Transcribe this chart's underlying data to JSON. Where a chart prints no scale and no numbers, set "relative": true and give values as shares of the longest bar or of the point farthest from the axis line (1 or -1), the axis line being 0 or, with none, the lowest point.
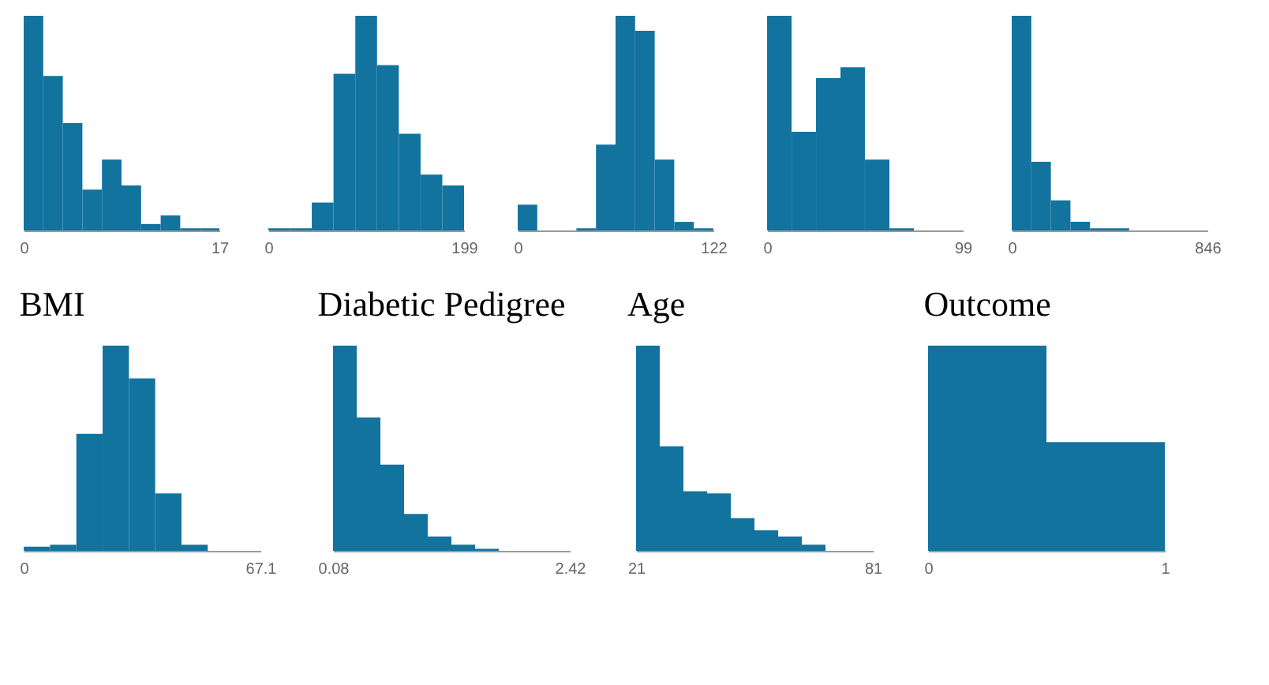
{
  "chart_data": [
    {
      "type": "bar",
      "relative": true,
      "color": "#12739f",
      "xlim": [
        0,
        17
      ],
      "xticks": [
        0,
        17
      ],
      "tick_labels": "x",
      "x": [
        0.85,
        2.55,
        4.25,
        5.95,
        7.65,
        9.35,
        11.05,
        12.75,
        14.45,
        16.15
      ],
      "values": [
        1,
        0.72,
        0.5,
        0.19,
        0.33,
        0.21,
        0.03,
        0.07,
        0.01,
        0.01
      ]
    },
    {
      "type": "bar",
      "relative": true,
      "color": "#12739f",
      "xlim": [
        0,
        199
      ],
      "xticks": [
        0,
        199
      ],
      "tick_labels": "x",
      "x": [
        11.05,
        33.15,
        55.25,
        77.35,
        99.5,
        121.65,
        143.75,
        165.85,
        187.95
      ],
      "values": [
        0.01,
        0.01,
        0.13,
        0.73,
        1,
        0.77,
        0.45,
        0.26,
        0.21
      ]
    },
    {
      "type": "bar",
      "relative": true,
      "color": "#12739f",
      "xlim": [
        0,
        122
      ],
      "xticks": [
        0,
        122
      ],
      "tick_labels": "x",
      "x": [
        6.1,
        18.3,
        30.5,
        42.7,
        54.9,
        67.1,
        79.3,
        91.5,
        103.7,
        115.9
      ],
      "values": [
        0.12,
        0,
        0,
        0.01,
        0.4,
        1,
        0.93,
        0.33,
        0.04,
        0.01
      ]
    },
    {
      "type": "bar",
      "relative": true,
      "color": "#12739f",
      "xlim": [
        0,
        99
      ],
      "xticks": [
        0,
        99
      ],
      "tick_labels": "x",
      "x": [
        6.2,
        18.6,
        30.95,
        43.3,
        55.7,
        68.1,
        80.45,
        92.8
      ],
      "values": [
        1,
        0.46,
        0.71,
        0.76,
        0.33,
        0.01,
        0,
        0
      ]
    },
    {
      "type": "bar",
      "relative": true,
      "color": "#12739f",
      "xlim": [
        0,
        846
      ],
      "xticks": [
        0,
        846
      ],
      "tick_labels": "x",
      "x": [
        42.3,
        126.9,
        211.5,
        296.1,
        380.7,
        465.3,
        549.9,
        634.5,
        719.1,
        803.7
      ],
      "values": [
        1,
        0.32,
        0.14,
        0.04,
        0.01,
        0.01,
        0,
        0,
        0,
        0
      ]
    },
    {
      "type": "bar",
      "title": "BMI",
      "relative": true,
      "color": "#12739f",
      "xlim": [
        0,
        67.1
      ],
      "xticks": [
        0,
        67.1
      ],
      "tick_labels": "x",
      "x": [
        3.75,
        11.2,
        18.65,
        26.1,
        33.55,
        41,
        48.45,
        55.9,
        63.35
      ],
      "values": [
        0.02,
        0.03,
        0.57,
        1,
        0.84,
        0.28,
        0.03,
        0,
        0
      ]
    },
    {
      "type": "bar",
      "title": "Diabetic Pedigree",
      "relative": true,
      "color": "#12739f",
      "xlim": [
        0.08,
        2.42
      ],
      "xticks": [
        0.08,
        2.42
      ],
      "tick_labels": "x",
      "x": [
        0.197,
        0.431,
        0.665,
        0.899,
        1.133,
        1.367,
        1.601,
        1.835,
        2.069,
        2.303
      ],
      "values": [
        1,
        0.65,
        0.42,
        0.18,
        0.07,
        0.03,
        0.01,
        0,
        0,
        0
      ]
    },
    {
      "type": "bar",
      "title": "Age",
      "relative": true,
      "color": "#12739f",
      "xlim": [
        21,
        81
      ],
      "xticks": [
        21,
        81
      ],
      "tick_labels": "x",
      "x": [
        24,
        30,
        36,
        42,
        48,
        54,
        60,
        66,
        72,
        78
      ],
      "values": [
        1,
        0.51,
        0.29,
        0.28,
        0.16,
        0.1,
        0.07,
        0.03,
        0,
        0
      ]
    },
    {
      "type": "bar",
      "title": "Outcome",
      "relative": true,
      "color": "#12739f",
      "xlim": [
        0,
        1
      ],
      "xticks": [
        0,
        1
      ],
      "tick_labels": "x",
      "x": [
        0.25,
        0.75
      ],
      "values": [
        1,
        0.53
      ]
    }
  ]
}
